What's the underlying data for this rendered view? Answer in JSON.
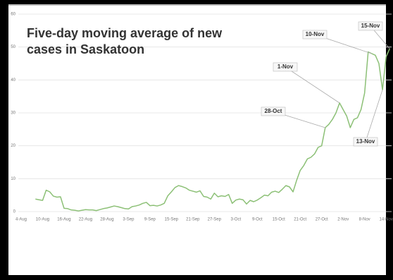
{
  "chart_data": {
    "type": "line",
    "title": "Five-day moving average of new cases in Saskatoon",
    "categories": [
      "4-Aug",
      null,
      null,
      null,
      null,
      null,
      "10-Aug",
      null,
      null,
      null,
      null,
      null,
      "16-Aug",
      null,
      null,
      null,
      null,
      null,
      "22-Aug",
      null,
      null,
      null,
      null,
      null,
      "28-Aug",
      null,
      null,
      null,
      null,
      null,
      "3-Sep",
      null,
      null,
      null,
      null,
      null,
      "9-Sep",
      null,
      null,
      null,
      null,
      null,
      "15-Sep",
      null,
      null,
      null,
      null,
      null,
      "21-Sep",
      null,
      null,
      null,
      null,
      null,
      "27-Sep",
      null,
      null,
      null,
      null,
      null,
      "3-Oct",
      null,
      null,
      null,
      null,
      null,
      "9-Oct",
      null,
      null,
      null,
      null,
      null,
      "15-Oct",
      null,
      null,
      null,
      null,
      null,
      "21-Oct",
      null,
      null,
      null,
      null,
      null,
      "27-Oct",
      null,
      null,
      null,
      null,
      null,
      "2-Nov",
      null,
      null,
      null,
      null,
      null,
      "8-Nov",
      null,
      null,
      null,
      null,
      null,
      "14-Nov",
      null
    ],
    "values": [
      null,
      null,
      null,
      null,
      3.8,
      3.6,
      3.4,
      6.5,
      6.0,
      4.7,
      4.4,
      4.5,
      1.0,
      0.9,
      0.5,
      0.4,
      0.2,
      0.4,
      0.6,
      0.5,
      0.5,
      0.3,
      0.6,
      0.9,
      1.1,
      1.4,
      1.7,
      1.5,
      1.2,
      0.9,
      0.8,
      1.5,
      1.7,
      2.0,
      2.5,
      2.8,
      1.8,
      1.9,
      1.7,
      2.0,
      2.5,
      4.8,
      6.0,
      7.3,
      7.9,
      7.6,
      7.2,
      6.5,
      6.2,
      5.9,
      6.3,
      4.6,
      4.4,
      3.8,
      5.6,
      4.5,
      4.8,
      4.6,
      5.2,
      2.5,
      3.5,
      3.8,
      3.6,
      2.3,
      3.4,
      3.0,
      3.5,
      4.2,
      5.0,
      4.8,
      5.9,
      6.2,
      5.8,
      6.8,
      7.9,
      7.5,
      6.0,
      9.5,
      12.5,
      14.0,
      16.0,
      16.5,
      17.5,
      19.5,
      20.0,
      25.5,
      26.5,
      28.0,
      30.0,
      33.0,
      31.0,
      29.0,
      25.5,
      28.0,
      28.5,
      31.0,
      36.0,
      48.5,
      48.0,
      47.5,
      45.0,
      37.0,
      47.0,
      49.5
    ],
    "color": "#8cc076",
    "ylim": [
      0,
      60
    ],
    "yticks": [
      0,
      10,
      20,
      30,
      40,
      50,
      60
    ],
    "grid": true,
    "annotations": [
      "28-Oct",
      "1-Nov",
      "10-Nov",
      "13-Nov",
      "15-Nov"
    ]
  }
}
